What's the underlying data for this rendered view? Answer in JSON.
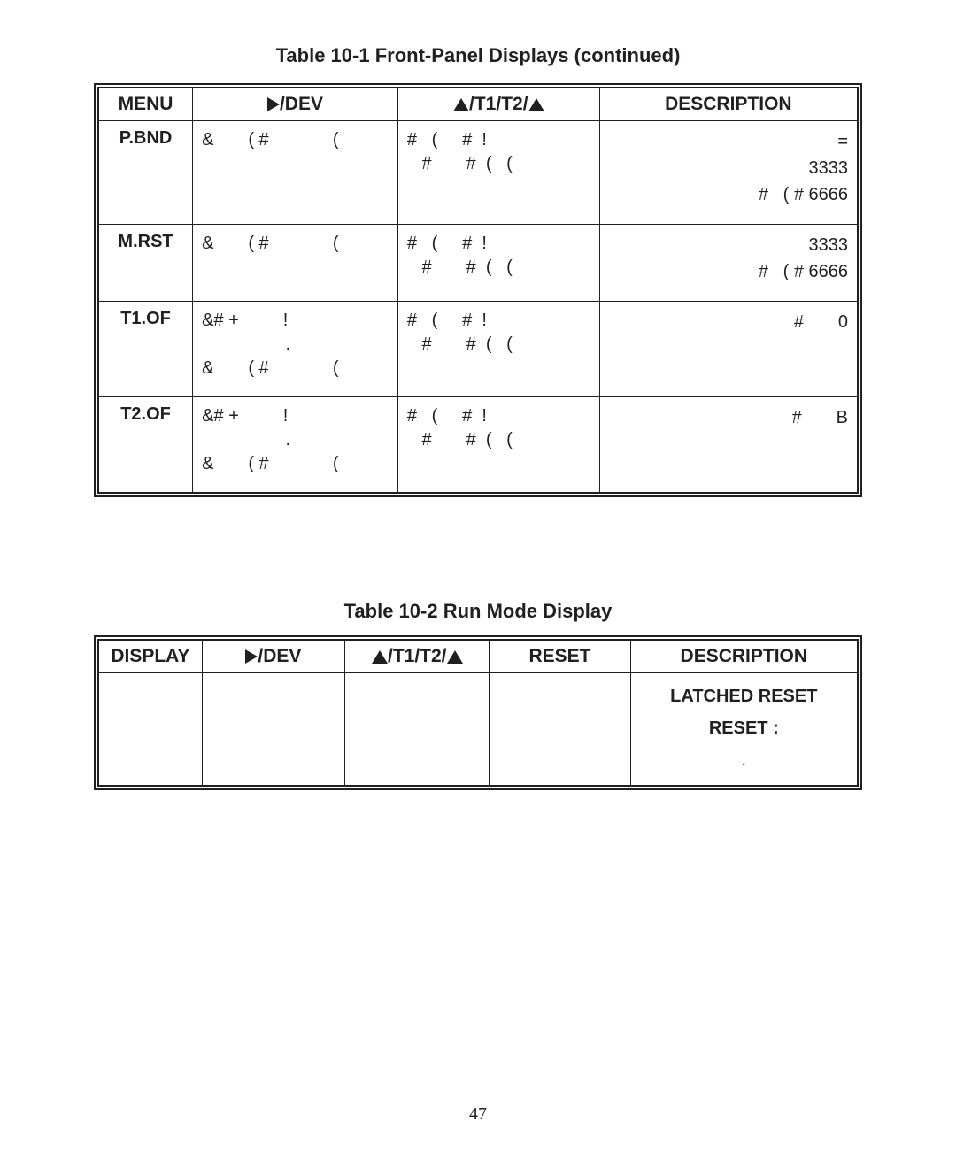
{
  "page_number": "47",
  "table1": {
    "caption": "Table 10-1  Front-Panel Displays (continued)",
    "headers": {
      "menu": "MENU",
      "dev": "/DEV",
      "t1t2": "/T1/T2/",
      "desc": "DESCRIPTION"
    },
    "rows": [
      {
        "menu": "P.BND",
        "dev": "&       ( #             (",
        "t1t2": "#   (     #  !\n   #       #  (   (",
        "desc": "=\n3333\n#   ( # 6666"
      },
      {
        "menu": "M.RST",
        "dev": "&       ( #             (",
        "t1t2": "#   (     #  !\n   #       #  (   (",
        "desc": "3333\n#   ( # 6666"
      },
      {
        "menu": "T1.OF",
        "dev": "&# +         !\n                 .\n&       ( #             (",
        "t1t2": "#   (     #  !\n   #       #  (   (",
        "desc": "#       0"
      },
      {
        "menu": "T2.OF",
        "dev": "&# +         !\n                 .\n&       ( #             (",
        "t1t2": "#   (     #  !\n   #       #  (   (",
        "desc": "#       B"
      }
    ]
  },
  "table2": {
    "caption": "Table 10-2  Run Mode Display",
    "headers": {
      "display": "DISPLAY",
      "dev": "/DEV",
      "t1t2": "/T1/T2/",
      "reset": "RESET",
      "desc": "DESCRIPTION"
    },
    "row": {
      "display": "",
      "dev": "",
      "t1t2": "",
      "reset": "",
      "desc_line1": "LATCHED RESET",
      "desc_line2": "RESET :",
      "desc_line3": "."
    }
  },
  "colors": {
    "text": "#231f20",
    "background": "#ffffff",
    "border": "#231f20"
  }
}
